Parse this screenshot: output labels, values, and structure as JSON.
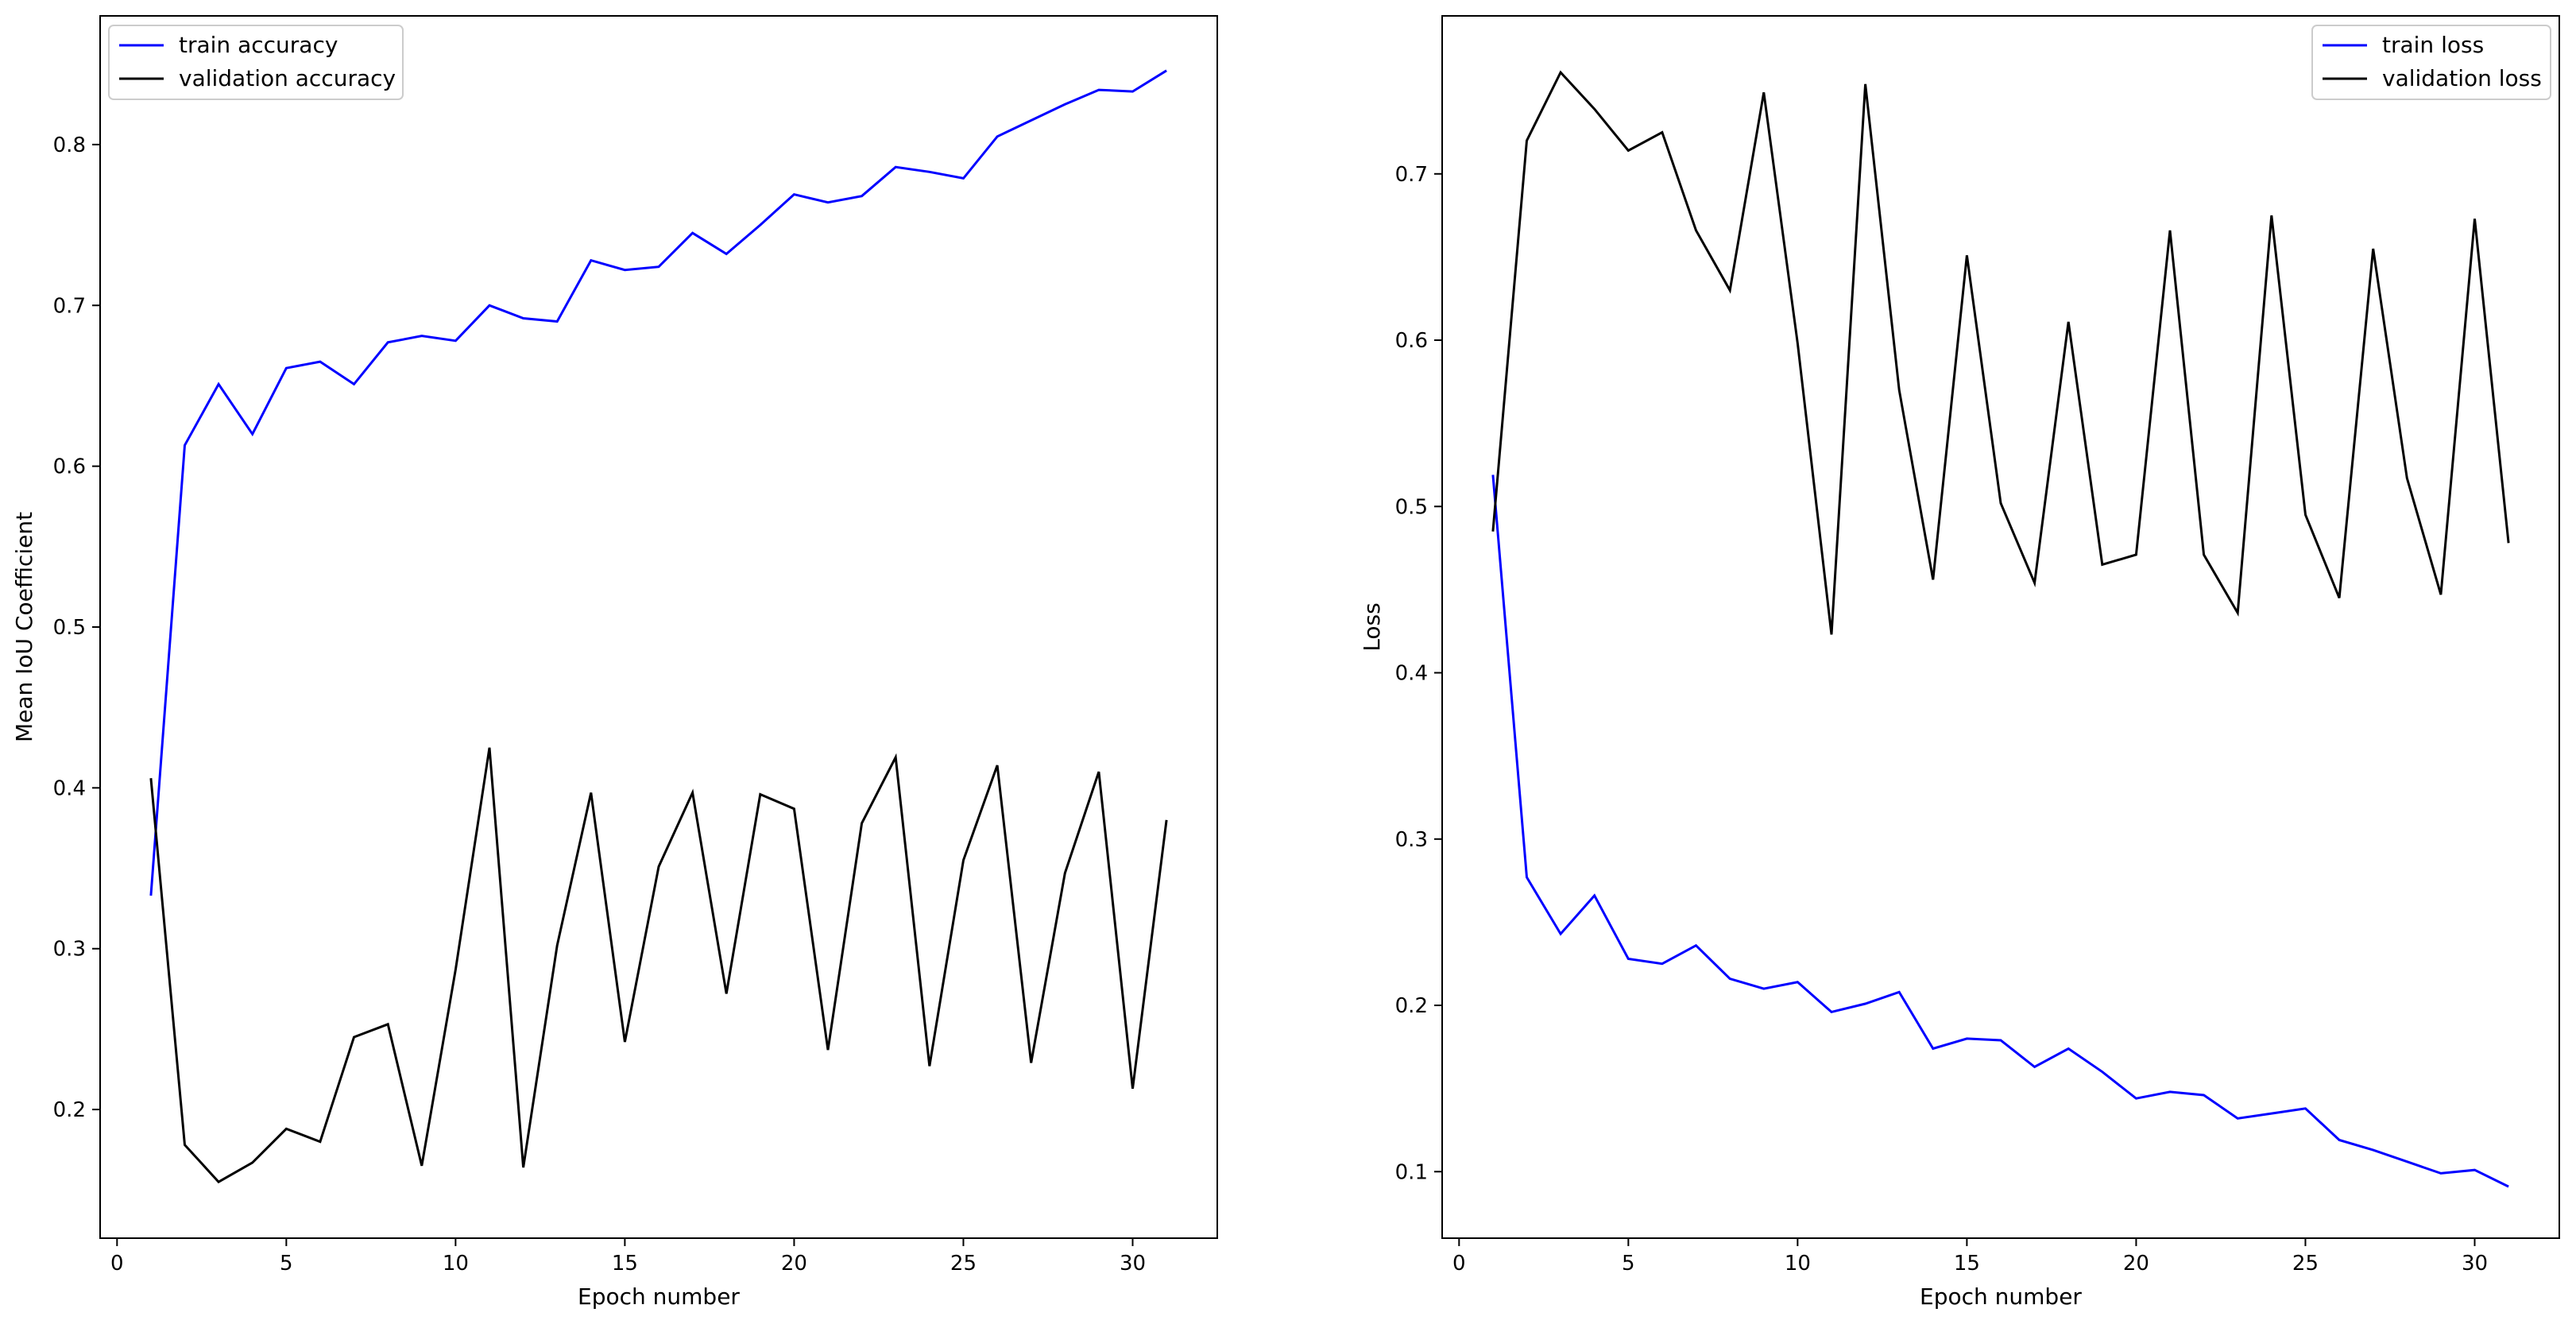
{
  "chart_data": [
    {
      "type": "line",
      "title": "",
      "xlabel": "Epoch number",
      "ylabel": "Mean IoU Coefficient",
      "xlim": [
        -0.5,
        32.5
      ],
      "ylim": [
        0.12,
        0.88
      ],
      "xticks": [
        0,
        5,
        10,
        15,
        20,
        25,
        30
      ],
      "yticks": [
        0.2,
        0.3,
        0.4,
        0.5,
        0.6,
        0.7,
        0.8
      ],
      "grid": false,
      "legend_position": "upper left",
      "x": [
        1,
        2,
        3,
        4,
        5,
        6,
        7,
        8,
        9,
        10,
        11,
        12,
        13,
        14,
        15,
        16,
        17,
        18,
        19,
        20,
        21,
        22,
        23,
        24,
        25,
        26,
        27,
        28,
        29,
        30,
        31
      ],
      "series": [
        {
          "name": "train accuracy",
          "color": "#0000ff",
          "values": [
            0.333,
            0.613,
            0.651,
            0.62,
            0.661,
            0.665,
            0.651,
            0.677,
            0.681,
            0.678,
            0.7,
            0.692,
            0.69,
            0.728,
            0.722,
            0.724,
            0.745,
            0.732,
            0.75,
            0.769,
            0.764,
            0.768,
            0.786,
            0.783,
            0.779,
            0.805,
            0.815,
            0.825,
            0.834,
            0.833,
            0.846
          ]
        },
        {
          "name": "validation accuracy",
          "color": "#000000",
          "values": [
            0.406,
            0.178,
            0.155,
            0.167,
            0.188,
            0.18,
            0.245,
            0.253,
            0.165,
            0.287,
            0.425,
            0.164,
            0.302,
            0.397,
            0.242,
            0.351,
            0.397,
            0.272,
            0.396,
            0.387,
            0.237,
            0.378,
            0.419,
            0.227,
            0.355,
            0.414,
            0.229,
            0.347,
            0.41,
            0.213,
            0.38
          ]
        }
      ]
    },
    {
      "type": "line",
      "title": "",
      "xlabel": "Epoch number",
      "ylabel": "Loss",
      "xlim": [
        -0.5,
        32.5
      ],
      "ylim": [
        0.06,
        0.795
      ],
      "xticks": [
        0,
        5,
        10,
        15,
        20,
        25,
        30
      ],
      "yticks": [
        0.1,
        0.2,
        0.3,
        0.4,
        0.5,
        0.6,
        0.7
      ],
      "grid": false,
      "legend_position": "upper right",
      "x": [
        1,
        2,
        3,
        4,
        5,
        6,
        7,
        8,
        9,
        10,
        11,
        12,
        13,
        14,
        15,
        16,
        17,
        18,
        19,
        20,
        21,
        22,
        23,
        24,
        25,
        26,
        27,
        28,
        29,
        30,
        31
      ],
      "series": [
        {
          "name": "train loss",
          "color": "#0000ff",
          "values": [
            0.519,
            0.277,
            0.243,
            0.266,
            0.228,
            0.225,
            0.236,
            0.216,
            0.21,
            0.214,
            0.196,
            0.201,
            0.208,
            0.174,
            0.18,
            0.179,
            0.163,
            0.174,
            0.16,
            0.144,
            0.148,
            0.146,
            0.132,
            0.135,
            0.138,
            0.119,
            0.113,
            0.106,
            0.099,
            0.101,
            0.091
          ]
        },
        {
          "name": "validation loss",
          "color": "#000000",
          "values": [
            0.485,
            0.72,
            0.761,
            0.739,
            0.714,
            0.725,
            0.666,
            0.63,
            0.749,
            0.598,
            0.423,
            0.754,
            0.57,
            0.456,
            0.651,
            0.502,
            0.454,
            0.611,
            0.465,
            0.471,
            0.666,
            0.471,
            0.436,
            0.675,
            0.495,
            0.445,
            0.655,
            0.517,
            0.447,
            0.673,
            0.478
          ]
        }
      ]
    }
  ]
}
